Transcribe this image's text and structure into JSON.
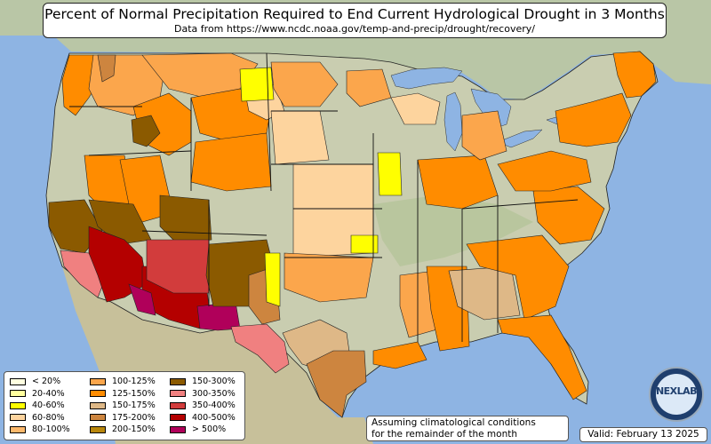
{
  "title": "Percent of Normal Precipitation Required to End Current Hydrological Drought in 3 Months",
  "subtitle": "Data from https://www.ncdc.noaa.gov/temp-and-precip/drought/recovery/",
  "legend": [
    {
      "label": "< 20%",
      "color": "#ffffe0"
    },
    {
      "label": "20-40%",
      "color": "#ffff9e"
    },
    {
      "label": "40-60%",
      "color": "#ffff00"
    },
    {
      "label": "60-80%",
      "color": "#fdd49e"
    },
    {
      "label": "80-100%",
      "color": "#fcb86b"
    },
    {
      "label": "100-125%",
      "color": "#fba64c"
    },
    {
      "label": "125-150%",
      "color": "#ff8c00"
    },
    {
      "label": "150-175%",
      "color": "#deb887"
    },
    {
      "label": "175-200%",
      "color": "#cd853f"
    },
    {
      "label": "200-150%",
      "color": "#b8860b"
    },
    {
      "label": "150-300%",
      "color": "#8b5a00"
    },
    {
      "label": "300-350%",
      "color": "#f08080"
    },
    {
      "label": "350-400%",
      "color": "#d23c3c"
    },
    {
      "label": "400-500%",
      "color": "#b40000"
    },
    {
      "label": "> 500%",
      "color": "#b0005a"
    }
  ],
  "note": {
    "line1": "Assuming climatological conditions",
    "line2": "for the remainder of the month"
  },
  "valid": "Valid: February 13 2025",
  "logo_text": "NEXLAB",
  "colors": {
    "ocean": "#8eb4e3",
    "land": "#c9cdb0",
    "land_green": "#a9be8c"
  }
}
